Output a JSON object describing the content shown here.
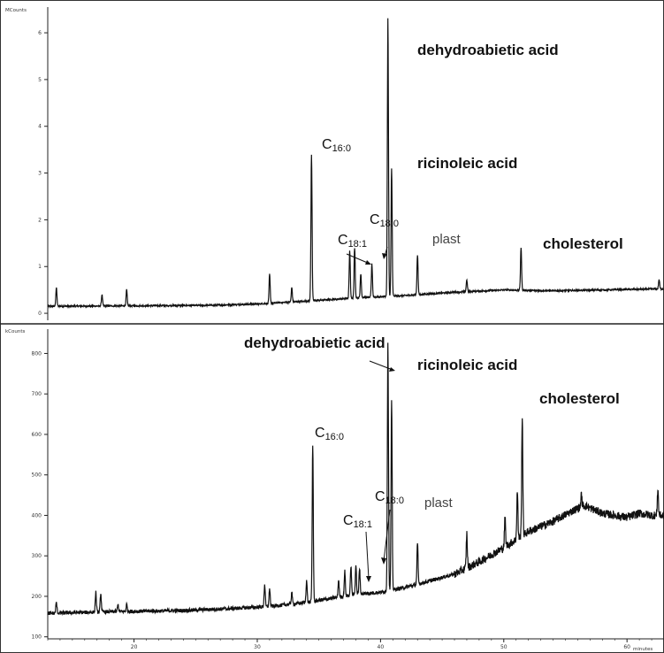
{
  "chart_data": [
    {
      "type": "line",
      "y_unit": "MCounts",
      "ylim": [
        -0.15,
        6.55
      ],
      "xlim": [
        13,
        63
      ],
      "y_ticks": [
        "0",
        "1",
        "2",
        "3",
        "4",
        "5",
        "6"
      ],
      "x_ticks": [],
      "baseline": [
        [
          13,
          0.15
        ],
        [
          20,
          0.16
        ],
        [
          26,
          0.17
        ],
        [
          30,
          0.2
        ],
        [
          34,
          0.26
        ],
        [
          38,
          0.33
        ],
        [
          42,
          0.38
        ],
        [
          46,
          0.45
        ],
        [
          50,
          0.5
        ],
        [
          54,
          0.48
        ],
        [
          58,
          0.5
        ],
        [
          62,
          0.52
        ]
      ],
      "peaks": [
        [
          13.7,
          0.55
        ],
        [
          17.4,
          0.4
        ],
        [
          19.4,
          0.5
        ],
        [
          31.0,
          0.83
        ],
        [
          32.8,
          0.55
        ],
        [
          34.4,
          3.4
        ],
        [
          37.5,
          1.35
        ],
        [
          37.9,
          1.4
        ],
        [
          38.4,
          0.85
        ],
        [
          39.3,
          1.05
        ],
        [
          40.6,
          6.3
        ],
        [
          40.9,
          3.1
        ],
        [
          43.0,
          1.25
        ],
        [
          47.0,
          0.72
        ],
        [
          51.4,
          1.4
        ],
        [
          62.6,
          0.72
        ]
      ],
      "annotations": [
        {
          "key": "dehydro",
          "text": "dehydroabietic acid"
        },
        {
          "key": "ricin",
          "text": "ricinoleic acid"
        },
        {
          "key": "c160",
          "main": "C",
          "sub": "16:0"
        },
        {
          "key": "c180",
          "main": "C",
          "sub": "18:0"
        },
        {
          "key": "c181",
          "main": "C",
          "sub": "18:1"
        },
        {
          "key": "plast",
          "text": "plast"
        },
        {
          "key": "chol",
          "text": "cholesterol"
        }
      ]
    },
    {
      "type": "line",
      "y_unit": "kCounts",
      "ylim": [
        95,
        860
      ],
      "xlim": [
        13,
        63
      ],
      "y_ticks": [
        "100",
        "200",
        "300",
        "400",
        "500",
        "600",
        "700",
        "800"
      ],
      "x_ticks": [
        "20",
        "30",
        "40",
        "50",
        "60"
      ],
      "x_unit": "minutes",
      "baseline": [
        [
          13,
          158
        ],
        [
          18,
          162
        ],
        [
          24,
          165
        ],
        [
          28,
          170
        ],
        [
          31,
          175
        ],
        [
          34,
          185
        ],
        [
          36,
          195
        ],
        [
          38,
          205
        ],
        [
          40,
          210
        ],
        [
          42,
          222
        ],
        [
          44,
          238
        ],
        [
          46,
          255
        ],
        [
          48,
          285
        ],
        [
          50,
          320
        ],
        [
          52,
          360
        ],
        [
          54,
          385
        ],
        [
          55.5,
          410
        ],
        [
          56.5,
          425
        ],
        [
          58,
          405
        ],
        [
          60,
          395
        ],
        [
          61,
          405
        ],
        [
          62,
          400
        ]
      ],
      "peaks": [
        [
          13.7,
          185
        ],
        [
          16.9,
          210
        ],
        [
          17.3,
          208
        ],
        [
          18.7,
          180
        ],
        [
          19.4,
          180
        ],
        [
          30.6,
          230
        ],
        [
          31.0,
          220
        ],
        [
          32.8,
          210
        ],
        [
          34.0,
          240
        ],
        [
          34.5,
          575
        ],
        [
          36.6,
          240
        ],
        [
          37.1,
          262
        ],
        [
          37.6,
          275
        ],
        [
          38.0,
          278
        ],
        [
          38.3,
          270
        ],
        [
          40.6,
          830
        ],
        [
          40.9,
          680
        ],
        [
          43.0,
          330
        ],
        [
          47.0,
          355
        ],
        [
          50.1,
          395
        ],
        [
          51.1,
          460
        ],
        [
          51.5,
          645
        ],
        [
          56.3,
          450
        ],
        [
          62.5,
          465
        ]
      ],
      "annotations": [
        {
          "key": "dehydro",
          "text": "dehydroabietic acid"
        },
        {
          "key": "ricin",
          "text": "ricinoleic acid"
        },
        {
          "key": "c160",
          "main": "C",
          "sub": "16:0"
        },
        {
          "key": "c180",
          "main": "C",
          "sub": "18:0"
        },
        {
          "key": "c181",
          "main": "C",
          "sub": "18:1"
        },
        {
          "key": "plast",
          "text": "plast"
        },
        {
          "key": "chol",
          "text": "cholesterol"
        }
      ]
    }
  ]
}
